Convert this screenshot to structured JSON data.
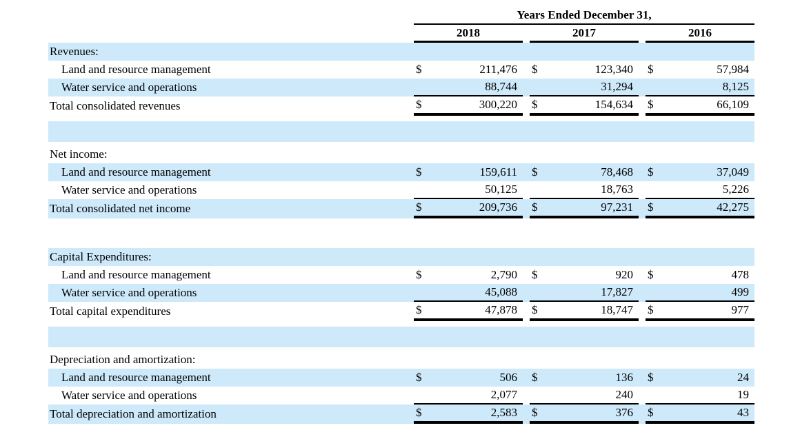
{
  "document": {
    "header": {
      "title": "Years Ended December 31,",
      "years": [
        "2018",
        "2017",
        "2016"
      ]
    },
    "currency": "$",
    "stripe_color": "#cde9fa",
    "sections": [
      {
        "name": "Revenues:",
        "rows": [
          {
            "label": "Land and resource management",
            "values": [
              "211,476",
              "123,340",
              "57,984"
            ]
          },
          {
            "label": "Water service and operations",
            "values": [
              "88,744",
              "31,294",
              "8,125"
            ]
          }
        ],
        "total": {
          "label": "Total consolidated revenues",
          "values": [
            "300,220",
            "154,634",
            "66,109"
          ]
        }
      },
      {
        "name": "Net income:",
        "rows": [
          {
            "label": "Land and resource management",
            "values": [
              "159,611",
              "78,468",
              "37,049"
            ]
          },
          {
            "label": "Water service and operations",
            "values": [
              "50,125",
              "18,763",
              "5,226"
            ]
          }
        ],
        "total": {
          "label": "Total consolidated net income",
          "values": [
            "209,736",
            "97,231",
            "42,275"
          ]
        }
      },
      {
        "name": "Capital Expenditures:",
        "rows": [
          {
            "label": "Land and resource management",
            "values": [
              "2,790",
              "920",
              "478"
            ]
          },
          {
            "label": "Water service and operations",
            "values": [
              "45,088",
              "17,827",
              "499"
            ]
          }
        ],
        "total": {
          "label": "Total capital expenditures",
          "values": [
            "47,878",
            "18,747",
            "977"
          ]
        }
      },
      {
        "name": "Depreciation and amortization:",
        "rows": [
          {
            "label": "Land and resource management",
            "values": [
              "506",
              "136",
              "24"
            ]
          },
          {
            "label": "Water service and operations",
            "values": [
              "2,077",
              "240",
              "19"
            ]
          }
        ],
        "total": {
          "label": "Total depreciation and amortization",
          "values": [
            "2,583",
            "376",
            "43"
          ]
        }
      }
    ]
  }
}
